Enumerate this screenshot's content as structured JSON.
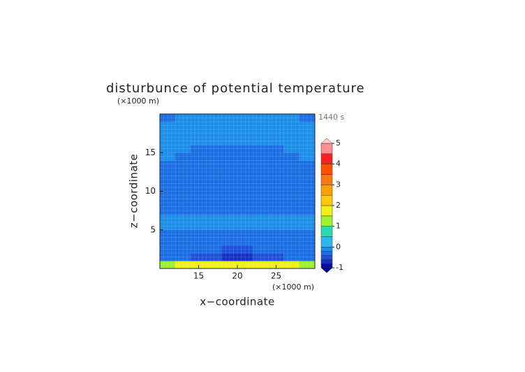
{
  "chart_data": {
    "type": "contourf",
    "title": "disturbunce of potential temperature",
    "time_label": "1440 s",
    "x_label": "x−coordinate",
    "y_label": "z−coordinate",
    "x_unit": "(×1000 m)",
    "y_unit": "(×1000 m)",
    "xlim": [
      10,
      30
    ],
    "ylim": [
      0,
      20
    ],
    "xticks": [
      15,
      20,
      25
    ],
    "yticks": [
      5,
      10,
      15
    ],
    "x": [
      11,
      13,
      15,
      17,
      19,
      21,
      23,
      25,
      27,
      29
    ],
    "y": [
      0.5,
      1.5,
      2.5,
      3.5,
      4.5,
      5.5,
      6.5,
      7.5,
      8.5,
      9.5,
      10.5,
      11.5,
      12.5,
      13.5,
      14.5,
      15.5,
      16.5,
      17.5,
      18.5,
      19.5
    ],
    "z": [
      [
        1.2,
        1.6,
        1.8,
        1.8,
        1.9,
        1.9,
        1.8,
        1.8,
        1.6,
        1.2
      ],
      [
        -0.3,
        -0.4,
        -0.5,
        -0.6,
        -0.7,
        -0.7,
        -0.6,
        -0.5,
        -0.4,
        -0.3
      ],
      [
        -0.3,
        -0.3,
        -0.3,
        -0.4,
        -0.5,
        -0.5,
        -0.4,
        -0.3,
        -0.3,
        -0.3
      ],
      [
        -0.3,
        -0.3,
        -0.3,
        -0.3,
        -0.3,
        -0.3,
        -0.3,
        -0.3,
        -0.3,
        -0.3
      ],
      [
        -0.3,
        -0.3,
        -0.3,
        -0.3,
        -0.3,
        -0.3,
        -0.3,
        -0.3,
        -0.3,
        -0.3
      ],
      [
        -0.1,
        -0.1,
        -0.1,
        -0.1,
        -0.1,
        -0.1,
        -0.1,
        -0.1,
        -0.1,
        -0.1
      ],
      [
        -0.1,
        -0.1,
        -0.1,
        -0.1,
        -0.1,
        -0.1,
        -0.1,
        -0.1,
        -0.1,
        -0.1
      ],
      [
        -0.3,
        -0.3,
        -0.3,
        -0.3,
        -0.3,
        -0.3,
        -0.3,
        -0.3,
        -0.3,
        -0.3
      ],
      [
        -0.3,
        -0.3,
        -0.3,
        -0.3,
        -0.3,
        -0.3,
        -0.3,
        -0.3,
        -0.3,
        -0.3
      ],
      [
        -0.3,
        -0.3,
        -0.3,
        -0.3,
        -0.3,
        -0.3,
        -0.3,
        -0.3,
        -0.3,
        -0.3
      ],
      [
        -0.3,
        -0.3,
        -0.3,
        -0.3,
        -0.3,
        -0.3,
        -0.3,
        -0.3,
        -0.3,
        -0.3
      ],
      [
        -0.3,
        -0.3,
        -0.3,
        -0.3,
        -0.3,
        -0.3,
        -0.3,
        -0.3,
        -0.3,
        -0.3
      ],
      [
        -0.3,
        -0.3,
        -0.3,
        -0.3,
        -0.3,
        -0.3,
        -0.3,
        -0.3,
        -0.3,
        -0.3
      ],
      [
        -0.3,
        -0.3,
        -0.3,
        -0.3,
        -0.3,
        -0.3,
        -0.3,
        -0.3,
        -0.3,
        -0.3
      ],
      [
        -0.1,
        -0.3,
        -0.3,
        -0.3,
        -0.3,
        -0.3,
        -0.3,
        -0.3,
        -0.3,
        -0.1
      ],
      [
        -0.1,
        -0.1,
        -0.3,
        -0.3,
        -0.3,
        -0.3,
        -0.3,
        -0.3,
        -0.1,
        -0.1
      ],
      [
        -0.1,
        -0.1,
        -0.1,
        -0.1,
        -0.1,
        -0.1,
        -0.1,
        -0.1,
        -0.1,
        -0.1
      ],
      [
        -0.1,
        -0.1,
        -0.1,
        -0.1,
        -0.1,
        -0.1,
        -0.1,
        -0.1,
        -0.1,
        -0.1
      ],
      [
        -0.1,
        -0.1,
        -0.1,
        -0.1,
        -0.1,
        -0.1,
        -0.1,
        -0.1,
        -0.1,
        -0.1
      ],
      [
        -0.3,
        -0.1,
        -0.1,
        -0.1,
        -0.1,
        -0.1,
        -0.1,
        -0.1,
        -0.1,
        -0.3
      ]
    ],
    "levels": [
      -1,
      -0.8,
      -0.6,
      -0.4,
      -0.2,
      0,
      0.5,
      1,
      1.5,
      2,
      2.5,
      3,
      3.5,
      4,
      4.5,
      5
    ],
    "level_colors": [
      "#0a0aa8",
      "#1432c8",
      "#1e50dc",
      "#1c6ee4",
      "#1c8ee8",
      "#32b4f0",
      "#28dcb4",
      "#a0f032",
      "#f0f014",
      "#ffc814",
      "#ffa000",
      "#ff7814",
      "#ff5000",
      "#ff2020",
      "#ff9090"
    ],
    "extend_colors": [
      "#0000a0",
      "#ffd0d0"
    ],
    "cbar_ticks": [
      -1,
      0,
      1,
      2,
      3,
      4,
      5
    ]
  }
}
